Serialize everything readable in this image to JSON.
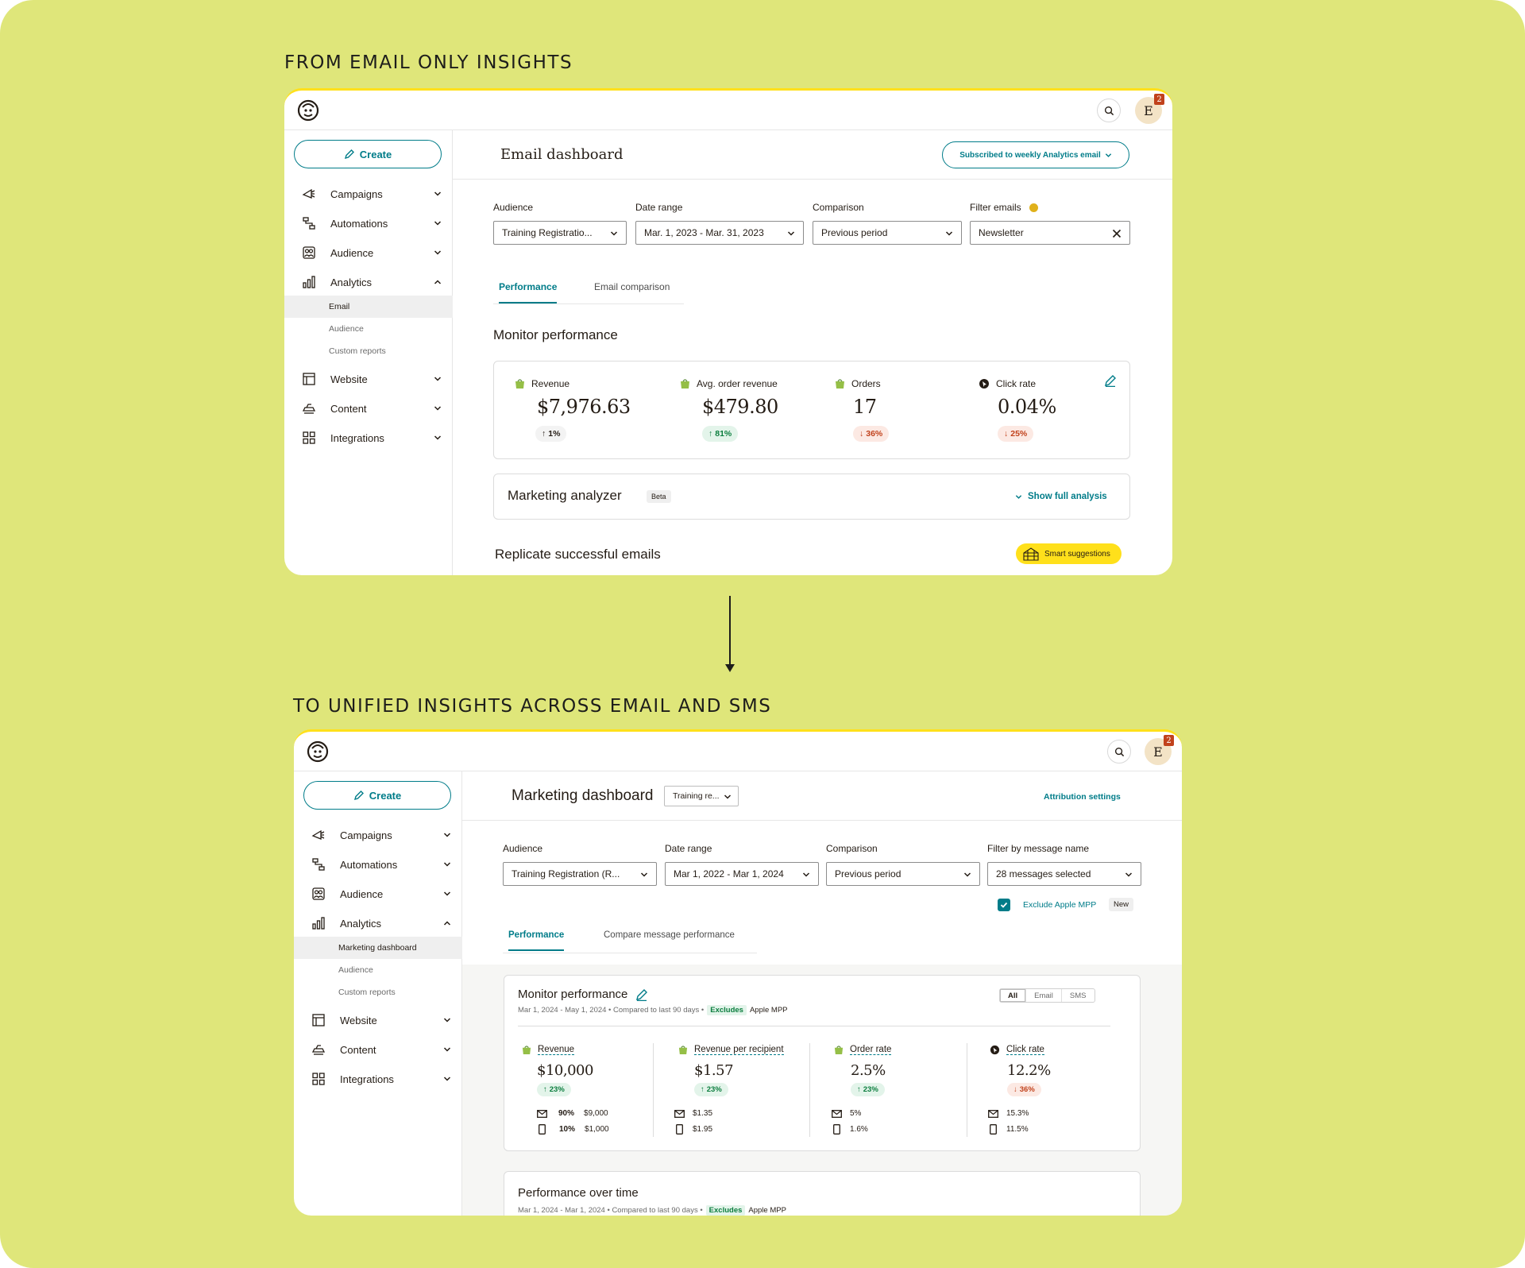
{
  "labels": {
    "from": "FROM EMAIL ONLY INSIGHTS",
    "to": "TO UNIFIED INSIGHTS ACROSS EMAIL AND SMS"
  },
  "colors": {
    "background": "#dfe67a",
    "accent": "#007c89",
    "brand_yellow": "#ffe01b",
    "positive": "#0b7d3e",
    "negative": "#c1421c"
  },
  "icons": [
    "freddie-logo-icon",
    "search-icon",
    "pencil-icon",
    "chevron-down-icon",
    "chevron-up-icon",
    "campaigns-icon",
    "automations-icon",
    "audience-icon",
    "analytics-icon",
    "website-icon",
    "content-icon",
    "integrations-icon",
    "shopify-bag-icon",
    "cursor-icon",
    "close-icon",
    "arrow-up-icon",
    "arrow-down-icon",
    "email-icon",
    "phone-icon",
    "check-icon",
    "greenhouse-icon"
  ],
  "top": {
    "avatar": "E",
    "badge": "2",
    "create": "Create",
    "nav": {
      "campaigns": "Campaigns",
      "automations": "Automations",
      "audience": "Audience",
      "analytics": "Analytics",
      "sub": [
        "Email",
        "Audience",
        "Custom reports"
      ],
      "website": "Website",
      "content": "Content",
      "integrations": "Integrations"
    },
    "title": "Email dashboard",
    "subscribe": "Subscribed to weekly Analytics email",
    "filters": {
      "audience_label": "Audience",
      "audience_value": "Training Registratio...",
      "date_label": "Date range",
      "date_value": "Mar. 1, 2023 - Mar. 31, 2023",
      "comparison_label": "Comparison",
      "comparison_value": "Previous period",
      "filter_label": "Filter emails",
      "filter_value": "Newsletter"
    },
    "tabs": [
      "Performance",
      "Email comparison"
    ],
    "monitor_title": "Monitor performance",
    "metrics": [
      {
        "label": "Revenue",
        "value": "$7,976.63",
        "change": "1%"
      },
      {
        "label": "Avg. order revenue",
        "value": "$479.80",
        "change": "81%"
      },
      {
        "label": "Orders",
        "value": "17",
        "change": "36%"
      },
      {
        "label": "Click rate",
        "value": "0.04%",
        "change": "25%"
      }
    ],
    "analyzer_title": "Marketing analyzer",
    "analyzer_badge": "Beta",
    "show_analysis": "Show full analysis",
    "replicate_title": "Replicate successful emails",
    "smart": "Smart suggestions"
  },
  "bottom": {
    "avatar": "E",
    "badge": "2",
    "create": "Create",
    "nav": {
      "campaigns": "Campaigns",
      "automations": "Automations",
      "audience": "Audience",
      "analytics": "Analytics",
      "sub": [
        "Marketing dashboard",
        "Audience",
        "Custom reports"
      ],
      "website": "Website",
      "content": "Content",
      "integrations": "Integrations"
    },
    "title": "Marketing dashboard",
    "title_select": "Training re...",
    "attribution": "Attribution settings",
    "filters": {
      "audience_label": "Audience",
      "audience_value": "Training Registration (R...",
      "date_label": "Date range",
      "date_value": "Mar 1, 2022 - Mar 1, 2024",
      "comparison_label": "Comparison",
      "comparison_value": "Previous period",
      "filter_label": "Filter by message name",
      "filter_value": "28 messages selected"
    },
    "exclude": "Exclude Apple MPP",
    "new_badge": "New",
    "tabs": [
      "Performance",
      "Compare message performance"
    ],
    "monitor_title": "Monitor performance",
    "segments": [
      "All",
      "Email",
      "SMS"
    ],
    "meta": {
      "dates": "Mar 1, 2024 - May 1, 2024 • Compared to last 90 days •",
      "excludes": "Excludes",
      "mpp": "Apple MPP"
    },
    "metrics": [
      {
        "label": "Revenue",
        "value": "$10,000",
        "change": "23%",
        "email_pct": "90%",
        "email_val": "$9,000",
        "sms_pct": "10%",
        "sms_val": "$1,000"
      },
      {
        "label": "Revenue per recipient",
        "value": "$1.57",
        "change": "23%",
        "email_val": "$1.35",
        "sms_val": "$1.95"
      },
      {
        "label": "Order rate",
        "value": "2.5%",
        "change": "23%",
        "email_val": "5%",
        "sms_val": "1.6%"
      },
      {
        "label": "Click rate",
        "value": "12.2%",
        "change": "36%",
        "email_val": "15.3%",
        "sms_val": "11.5%"
      }
    ],
    "pot_title": "Performance over time",
    "pot_meta": {
      "dates": "Mar 1, 2024 - Mar 1, 2024 • Compared to last 90 days •",
      "excludes": "Excludes",
      "mpp": "Apple MPP"
    }
  }
}
